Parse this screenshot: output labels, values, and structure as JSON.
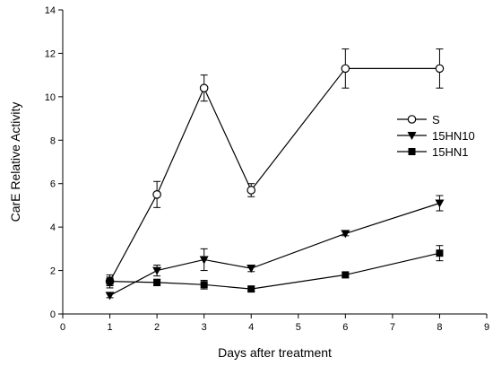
{
  "chart_data": {
    "type": "line",
    "title": "",
    "xlabel": "Days after treatment",
    "ylabel": "CarE Relative Activity",
    "xlim": [
      0,
      9
    ],
    "ylim": [
      0,
      14
    ],
    "xticks": [
      0,
      1,
      2,
      3,
      4,
      5,
      6,
      7,
      8,
      9
    ],
    "yticks": [
      0,
      2,
      4,
      6,
      8,
      10,
      12,
      14
    ],
    "grid": false,
    "legend_position": "right",
    "series": [
      {
        "name": "S",
        "marker": "open-circle",
        "x": [
          1,
          2,
          3,
          4,
          6,
          8
        ],
        "y": [
          1.5,
          5.5,
          10.4,
          5.7,
          11.3,
          11.3
        ],
        "error": [
          0.2,
          0.6,
          0.6,
          0.3,
          0.9,
          0.9
        ]
      },
      {
        "name": "15HN10",
        "marker": "filled-triangle-down",
        "x": [
          1,
          2,
          3,
          4,
          6,
          8
        ],
        "y": [
          0.85,
          2.0,
          2.5,
          2.1,
          3.7,
          5.1
        ],
        "error": [
          0.1,
          0.25,
          0.5,
          0.15,
          0.1,
          0.35
        ]
      },
      {
        "name": "15HN1",
        "marker": "filled-square",
        "x": [
          1,
          2,
          3,
          4,
          6,
          8
        ],
        "y": [
          1.5,
          1.45,
          1.35,
          1.15,
          1.8,
          2.8
        ],
        "error": [
          0.3,
          0.15,
          0.2,
          0.12,
          0.1,
          0.35
        ]
      }
    ]
  }
}
